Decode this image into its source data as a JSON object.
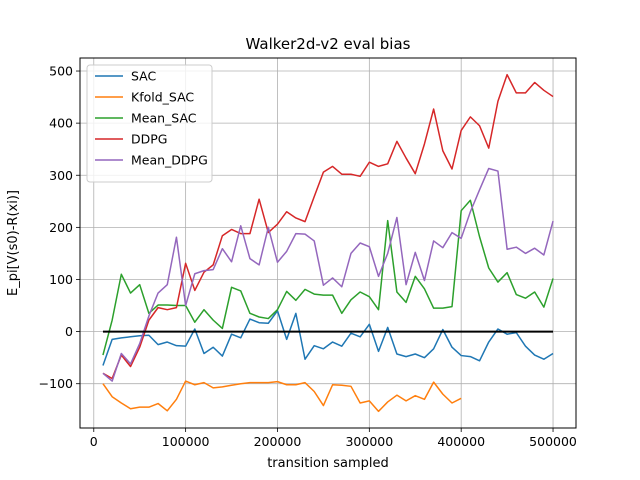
{
  "chart_data": {
    "type": "line",
    "title": "Walker2d-v2 eval bias",
    "xlabel": "transition sampled",
    "ylabel": "E_pi[V(s0)-R(xi)]",
    "xlim": [
      -15000,
      525000
    ],
    "ylim": [
      -185,
      525
    ],
    "xticks": [
      0,
      100000,
      200000,
      300000,
      400000,
      500000
    ],
    "yticks": [
      -100,
      0,
      100,
      200,
      300,
      400,
      500
    ],
    "grid": true,
    "legend_position": "upper-left",
    "reference_line": {
      "y": 0,
      "x_range": [
        10000,
        500000
      ],
      "color": "#000000"
    },
    "series": [
      {
        "name": "SAC",
        "color": "#1f77b4",
        "x": [
          10000,
          20000,
          30000,
          40000,
          50000,
          60000,
          70000,
          80000,
          90000,
          100000,
          110000,
          120000,
          130000,
          140000,
          150000,
          160000,
          170000,
          180000,
          190000,
          200000,
          210000,
          220000,
          230000,
          240000,
          250000,
          260000,
          270000,
          280000,
          290000,
          300000,
          310000,
          320000,
          330000,
          340000,
          350000,
          360000,
          370000,
          380000,
          390000,
          400000,
          410000,
          420000,
          430000,
          440000,
          450000,
          460000,
          470000,
          480000,
          490000,
          500000
        ],
        "y": [
          -65,
          -15,
          -12,
          -10,
          -8,
          -7,
          -25,
          -20,
          -27,
          -28,
          5,
          -42,
          -30,
          -47,
          -5,
          -12,
          24,
          17,
          16,
          40,
          -15,
          35,
          -53,
          -27,
          -33,
          -20,
          -28,
          -3,
          -10,
          14,
          -38,
          8,
          -43,
          -48,
          -43,
          -50,
          -33,
          4,
          -30,
          -46,
          -48,
          -56,
          -20,
          5,
          -5,
          -2,
          -28,
          -45,
          -53,
          -42
        ]
      },
      {
        "name": "Kfold_SAC",
        "color": "#ff7f0e",
        "x": [
          10000,
          20000,
          30000,
          40000,
          50000,
          60000,
          70000,
          80000,
          90000,
          100000,
          110000,
          120000,
          130000,
          140000,
          150000,
          160000,
          170000,
          180000,
          190000,
          200000,
          210000,
          220000,
          230000,
          240000,
          250000,
          260000,
          270000,
          280000,
          290000,
          300000,
          310000,
          320000,
          330000,
          340000,
          350000,
          360000,
          370000,
          380000,
          390000,
          400000
        ],
        "y": [
          -100,
          -125,
          -137,
          -148,
          -145,
          -145,
          -138,
          -152,
          -130,
          -95,
          -102,
          -98,
          -108,
          -106,
          -103,
          -100,
          -98,
          -98,
          -98,
          -96,
          -102,
          -102,
          -98,
          -115,
          -142,
          -102,
          -103,
          -105,
          -137,
          -133,
          -153,
          -135,
          -122,
          -133,
          -123,
          -130,
          -97,
          -120,
          -137,
          -128
        ]
      },
      {
        "name": "Mean_SAC",
        "color": "#2ca02c",
        "x": [
          10000,
          20000,
          30000,
          40000,
          50000,
          60000,
          70000,
          80000,
          90000,
          100000,
          110000,
          120000,
          130000,
          140000,
          150000,
          160000,
          170000,
          180000,
          190000,
          200000,
          210000,
          220000,
          230000,
          240000,
          250000,
          260000,
          270000,
          280000,
          290000,
          300000,
          310000,
          320000,
          330000,
          340000,
          350000,
          360000,
          370000,
          380000,
          390000,
          400000,
          410000,
          420000,
          430000,
          440000,
          450000,
          460000,
          470000,
          480000,
          490000,
          500000
        ],
        "y": [
          -45,
          22,
          110,
          74,
          90,
          35,
          51,
          51,
          50,
          50,
          18,
          42,
          22,
          6,
          85,
          78,
          35,
          28,
          25,
          42,
          77,
          60,
          81,
          72,
          70,
          70,
          35,
          61,
          76,
          67,
          42,
          213,
          76,
          56,
          106,
          82,
          45,
          45,
          48,
          232,
          252,
          182,
          122,
          95,
          113,
          71,
          64,
          76,
          47,
          102
        ]
      },
      {
        "name": "DDPG",
        "color": "#d62728",
        "x": [
          10000,
          20000,
          30000,
          40000,
          50000,
          60000,
          70000,
          80000,
          90000,
          100000,
          110000,
          120000,
          130000,
          140000,
          150000,
          160000,
          170000,
          180000,
          190000,
          200000,
          210000,
          220000,
          230000,
          240000,
          250000,
          260000,
          270000,
          280000,
          290000,
          300000,
          310000,
          320000,
          330000,
          340000,
          350000,
          360000,
          370000,
          380000,
          390000,
          400000,
          410000,
          420000,
          430000,
          440000,
          450000,
          460000,
          470000,
          480000,
          490000,
          500000
        ],
        "y": [
          -80,
          -90,
          -45,
          -67,
          -30,
          22,
          46,
          42,
          46,
          131,
          79,
          114,
          128,
          184,
          196,
          188,
          188,
          254,
          190,
          206,
          230,
          218,
          211,
          259,
          306,
          317,
          302,
          302,
          298,
          325,
          317,
          322,
          365,
          333,
          303,
          360,
          427,
          347,
          312,
          386,
          412,
          395,
          352,
          442,
          493,
          458,
          458,
          478,
          463,
          451
        ]
      },
      {
        "name": "Mean_DDPG",
        "color": "#9467bd",
        "x": [
          10000,
          20000,
          30000,
          40000,
          50000,
          60000,
          70000,
          80000,
          90000,
          100000,
          110000,
          120000,
          130000,
          140000,
          150000,
          160000,
          170000,
          180000,
          190000,
          200000,
          210000,
          220000,
          230000,
          240000,
          250000,
          260000,
          270000,
          280000,
          290000,
          300000,
          310000,
          320000,
          330000,
          340000,
          350000,
          360000,
          370000,
          380000,
          390000,
          400000,
          410000,
          420000,
          430000,
          440000,
          450000,
          460000,
          470000,
          480000,
          490000,
          500000
        ],
        "y": [
          -80,
          -95,
          -42,
          -62,
          -23,
          30,
          74,
          90,
          181,
          50,
          111,
          117,
          119,
          159,
          134,
          203,
          140,
          128,
          200,
          133,
          154,
          188,
          187,
          174,
          89,
          103,
          86,
          150,
          170,
          163,
          106,
          150,
          219,
          90,
          152,
          98,
          174,
          161,
          190,
          179,
          230,
          272,
          313,
          308,
          158,
          162,
          150,
          160,
          147,
          212
        ]
      }
    ]
  }
}
